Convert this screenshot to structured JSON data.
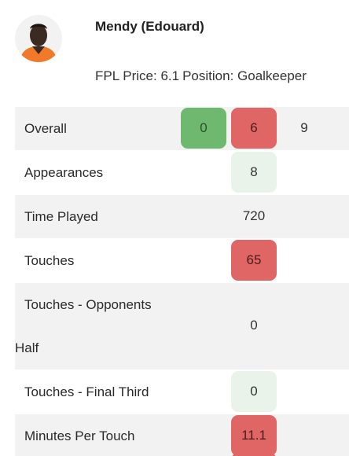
{
  "player": {
    "name": "Mendy (Edouard)",
    "price_label": "FPL Price: 6.1",
    "position_label": "Position: Goalkeeper",
    "avatar_icon": "player-photo"
  },
  "stats": {
    "overall": {
      "label": "Overall",
      "values": [
        "0",
        "6",
        "9"
      ]
    },
    "appearances": {
      "label": "Appearances",
      "value": "8"
    },
    "time_played": {
      "label": "Time Played",
      "value": "720"
    },
    "touches": {
      "label": "Touches",
      "value": "65"
    },
    "touches_opp_half": {
      "label_line1": "Touches - Opponents",
      "label_line2": "Half",
      "value": "0"
    },
    "touches_final_third": {
      "label": "Touches - Final Third",
      "value": "0"
    },
    "minutes_per_touch": {
      "label": "Minutes Per Touch",
      "value": "11.1"
    }
  },
  "colors": {
    "good": "#6fb86f",
    "bad": "#e06666",
    "neutral": "#e9f3e9",
    "row_shade": "#f2f2f2"
  }
}
